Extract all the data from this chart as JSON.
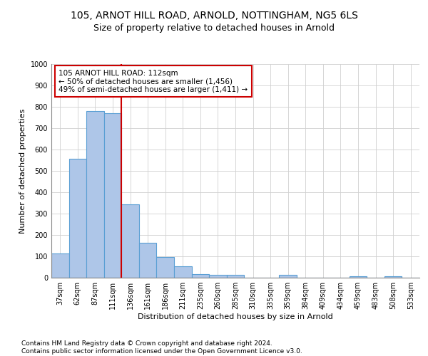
{
  "title": "105, ARNOT HILL ROAD, ARNOLD, NOTTINGHAM, NG5 6LS",
  "subtitle": "Size of property relative to detached houses in Arnold",
  "xlabel": "Distribution of detached houses by size in Arnold",
  "ylabel": "Number of detached properties",
  "bar_color": "#aec6e8",
  "bar_edge_color": "#5a9fd4",
  "grid_color": "#d0d0d0",
  "background_color": "#ffffff",
  "categories": [
    "37sqm",
    "62sqm",
    "87sqm",
    "111sqm",
    "136sqm",
    "161sqm",
    "186sqm",
    "211sqm",
    "235sqm",
    "260sqm",
    "285sqm",
    "310sqm",
    "335sqm",
    "359sqm",
    "384sqm",
    "409sqm",
    "434sqm",
    "459sqm",
    "483sqm",
    "508sqm",
    "533sqm"
  ],
  "values": [
    112,
    558,
    780,
    770,
    345,
    165,
    98,
    55,
    18,
    14,
    14,
    0,
    0,
    12,
    0,
    0,
    0,
    8,
    0,
    8,
    0
  ],
  "ylim": [
    0,
    1000
  ],
  "yticks": [
    0,
    100,
    200,
    300,
    400,
    500,
    600,
    700,
    800,
    900,
    1000
  ],
  "property_line_x": 3.5,
  "property_line_color": "#cc0000",
  "annotation_box_text": "105 ARNOT HILL ROAD: 112sqm\n← 50% of detached houses are smaller (1,456)\n49% of semi-detached houses are larger (1,411) →",
  "footer_text": "Contains HM Land Registry data © Crown copyright and database right 2024.\nContains public sector information licensed under the Open Government Licence v3.0.",
  "title_fontsize": 10,
  "subtitle_fontsize": 9,
  "axis_label_fontsize": 8,
  "tick_fontsize": 7,
  "annotation_fontsize": 7.5,
  "footer_fontsize": 6.5
}
